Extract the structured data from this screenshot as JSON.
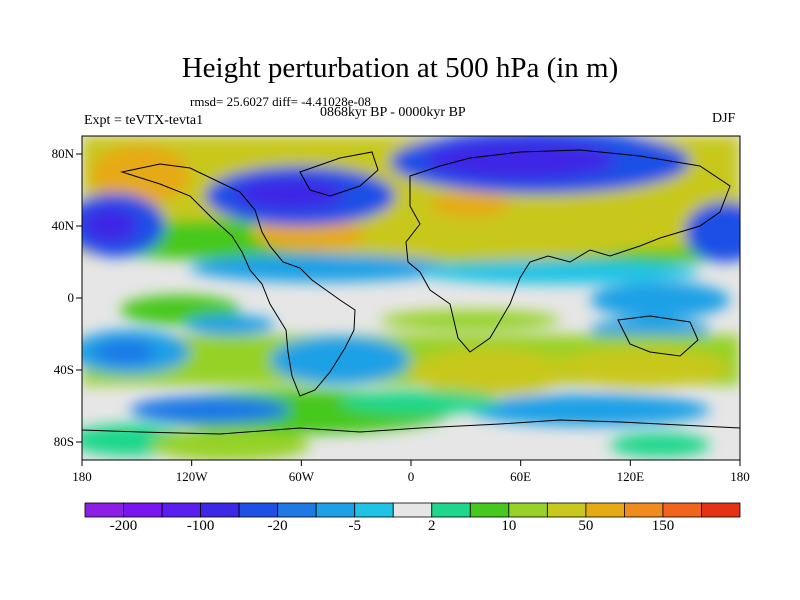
{
  "title": "Height perturbation at 500 hPa (in m)",
  "stats": "rmsd= 25.6027 diff= -4.41028e-08",
  "period": "0868kyr BP - 0000kyr BP",
  "experiment": "Expt = teVTX-tevta1",
  "season": "DJF",
  "map": {
    "projection": "cylindrical equidistant",
    "lon_range": [
      -180,
      180
    ],
    "lat_range": [
      -90,
      90
    ],
    "lat_ticks": [
      {
        "value": 80,
        "label": "80N"
      },
      {
        "value": 40,
        "label": "40N"
      },
      {
        "value": 0,
        "label": "0"
      },
      {
        "value": -40,
        "label": "40S"
      },
      {
        "value": -80,
        "label": "80S"
      }
    ],
    "lon_ticks": [
      {
        "value": -180,
        "label": "180"
      },
      {
        "value": -120,
        "label": "120W"
      },
      {
        "value": -60,
        "label": "60W"
      },
      {
        "value": 0,
        "label": "0"
      },
      {
        "value": 60,
        "label": "60E"
      },
      {
        "value": 120,
        "label": "120E"
      },
      {
        "value": 180,
        "label": "180"
      }
    ]
  },
  "colorbar": {
    "colors": [
      "#8c1ee6",
      "#7a14f0",
      "#5a1ef0",
      "#3c28e6",
      "#1e50e6",
      "#1e78e6",
      "#1ea0e6",
      "#1ec3e6",
      "#e6e6e6",
      "#1ed78c",
      "#46c81e",
      "#96d228",
      "#c8c81e",
      "#e6aa14",
      "#f08c1e",
      "#f0641e",
      "#e63214"
    ],
    "tick_labels": [
      {
        "after_box": 1,
        "label": "-200"
      },
      {
        "after_box": 3,
        "label": "-100"
      },
      {
        "after_box": 5,
        "label": "-20"
      },
      {
        "after_box": 7,
        "label": "-5"
      },
      {
        "after_box": 9,
        "label": "2"
      },
      {
        "after_box": 11,
        "label": "10"
      },
      {
        "after_box": 13,
        "label": "50"
      },
      {
        "after_box": 15,
        "label": "150"
      }
    ]
  }
}
